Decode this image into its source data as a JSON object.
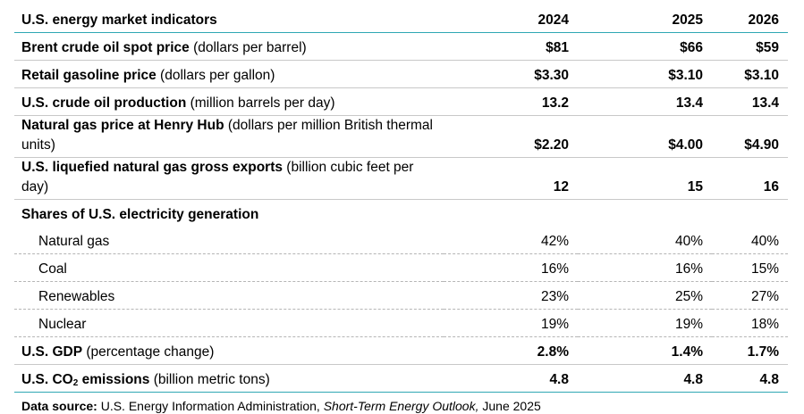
{
  "table": {
    "title": "U.S. energy market indicators",
    "years": [
      "2024",
      "2025",
      "2026"
    ],
    "rows": [
      {
        "bold": "Brent crude oil spot price",
        "unit": " (dollars per barrel)",
        "values": [
          "$81",
          "$66",
          "$59"
        ]
      },
      {
        "bold": "Retail gasoline price",
        "unit": " (dollars per gallon)",
        "values": [
          "$3.30",
          "$3.10",
          "$3.10"
        ]
      },
      {
        "bold": "U.S. crude oil production",
        "unit": " (million barrels per day)",
        "values": [
          "13.2",
          "13.4",
          "13.4"
        ]
      },
      {
        "bold": "Natural gas price at Henry Hub",
        "unit": " (dollars per million British thermal units)",
        "values": [
          "$2.20",
          "$4.00",
          "$4.90"
        ]
      },
      {
        "bold": "U.S. liquefied natural gas gross exports",
        "unit": " (billion cubic feet per day)",
        "values": [
          "12",
          "15",
          "16"
        ]
      }
    ],
    "electricity": {
      "heading": "Shares of U.S. electricity generation",
      "rows": [
        {
          "label": "Natural gas",
          "values": [
            "42%",
            "40%",
            "40%"
          ]
        },
        {
          "label": "Coal",
          "values": [
            "16%",
            "16%",
            "15%"
          ]
        },
        {
          "label": "Renewables",
          "values": [
            "23%",
            "25%",
            "27%"
          ]
        },
        {
          "label": "Nuclear",
          "values": [
            "19%",
            "19%",
            "18%"
          ]
        }
      ]
    },
    "gdp": {
      "bold": "U.S. GDP",
      "unit": " (percentage change)",
      "values": [
        "2.8%",
        "1.4%",
        "1.7%"
      ]
    },
    "co2": {
      "bold_pre": "U.S. CO",
      "bold_sub": "2",
      "bold_post": " emissions",
      "unit": " (billion metric tons)",
      "values": [
        "4.8",
        "4.8",
        "4.8"
      ]
    }
  },
  "source": {
    "label": "Data source:",
    "text_pre": " U.S. Energy Information Administration, ",
    "publication": "Short-Term Energy Outlook,",
    "text_post": " June 2025"
  }
}
